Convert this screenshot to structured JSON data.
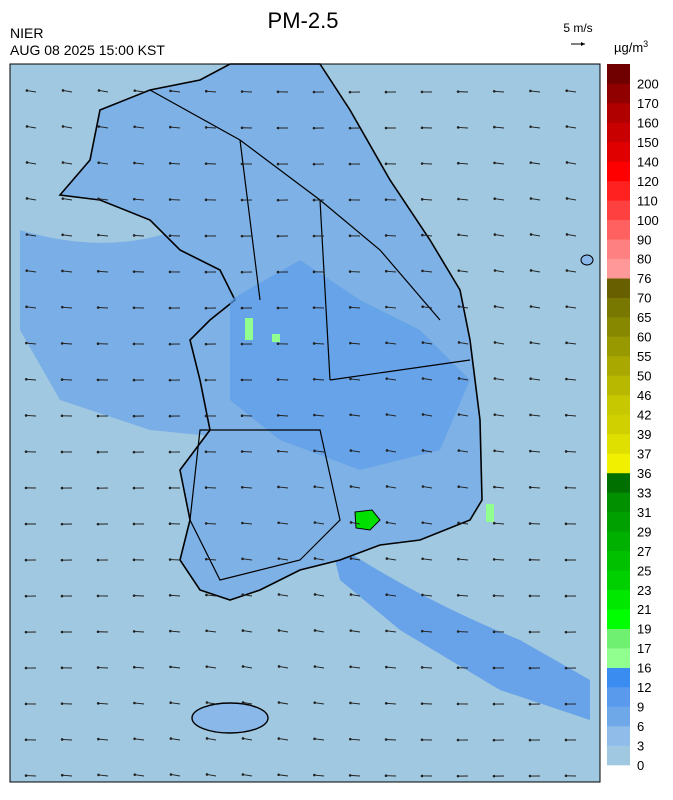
{
  "header": {
    "title": "PM-2.5",
    "agency": "NIER",
    "timestamp": "AUG 08 2025 15:00 KST",
    "wind_scale": "5 m/s"
  },
  "legend": {
    "unit": {
      "base": "µg/m",
      "exponent": "3"
    },
    "labels": [
      "0",
      "3",
      "6",
      "9",
      "12",
      "16",
      "17",
      "19",
      "21",
      "23",
      "25",
      "27",
      "29",
      "31",
      "33",
      "36",
      "37",
      "39",
      "42",
      "46",
      "50",
      "55",
      "60",
      "65",
      "70",
      "76",
      "80",
      "90",
      "100",
      "110",
      "120",
      "140",
      "150",
      "160",
      "170",
      "200"
    ],
    "colors": [
      "#a0c8e0",
      "#8fbce8",
      "#6fa8e8",
      "#5a9aec",
      "#3a8cf0",
      "#90ff90",
      "#70f070",
      "#00ff00",
      "#00e800",
      "#00d000",
      "#00c000",
      "#00b000",
      "#00a000",
      "#009000",
      "#007000",
      "#f0f000",
      "#e0e000",
      "#d0d000",
      "#c8c800",
      "#b8b800",
      "#a8a800",
      "#989800",
      "#888800",
      "#787800",
      "#686000",
      "#ff9898",
      "#ff8080",
      "#ff6060",
      "#ff4040",
      "#ff2020",
      "#ff0000",
      "#e00000",
      "#c80000",
      "#b00000",
      "#900000",
      "#700000"
    ]
  }
}
